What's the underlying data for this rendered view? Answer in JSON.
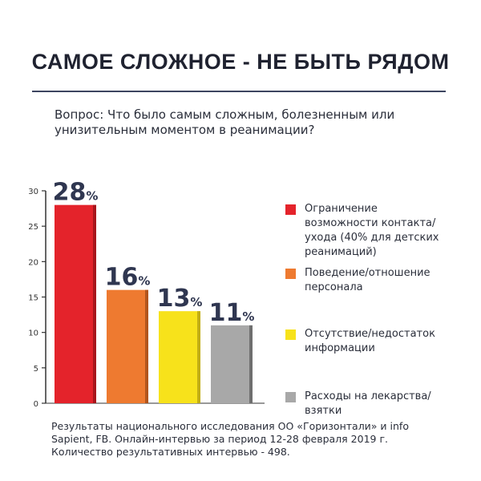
{
  "header": {
    "title": "САМОЕ СЛОЖНОЕ - НЕ БЫТЬ РЯДОМ",
    "question": "Вопрос: Что было самым сложным, болезненным или унизительным моментом в реанимации?"
  },
  "chart_data": {
    "type": "bar",
    "categories": [
      "Ограничение возможности контакта/ухода (40% для детских реанимаций)",
      "Поведение/отношение персонала",
      "Отсутствие/недостаток информации",
      "Расходы на лекарства/взятки"
    ],
    "values": [
      28,
      16,
      13,
      11
    ],
    "value_labels": [
      "28%",
      "16%",
      "13%",
      "11%"
    ],
    "colors": [
      "#e4232b",
      "#ee7a30",
      "#f7e21b",
      "#a8a8a8"
    ],
    "side_colors": [
      "#a8161c",
      "#b2551d",
      "#c2ae13",
      "#6f6f6f"
    ],
    "ylim": [
      0,
      30
    ],
    "yticks": [
      0,
      5,
      10,
      15,
      20,
      25,
      30
    ],
    "ytick_labels": [
      "0",
      "5",
      "10",
      "15",
      "20",
      "25",
      "30"
    ],
    "grid": false,
    "legend_position": "right",
    "title": "",
    "xlabel": "",
    "ylabel": ""
  },
  "legend": {
    "items": [
      {
        "text": "Ограничение возможности контакта/ухода (40% для детских реанимаций)",
        "color": "#e4232b"
      },
      {
        "text": "Поведение/отношение персонала",
        "color": "#ee7a30"
      },
      {
        "text": "Отсутствие/недостаток информации",
        "color": "#f7e21b"
      },
      {
        "text": "Расходы на лекарства/взятки",
        "color": "#a8a8a8"
      }
    ]
  },
  "footer": {
    "note": "Результаты национального исследования ОО «Горизонтали» и info Sapient, FB. Онлайн-интервью за период 12-28 февраля 2019 г. Количество результативных интервью - 498."
  }
}
